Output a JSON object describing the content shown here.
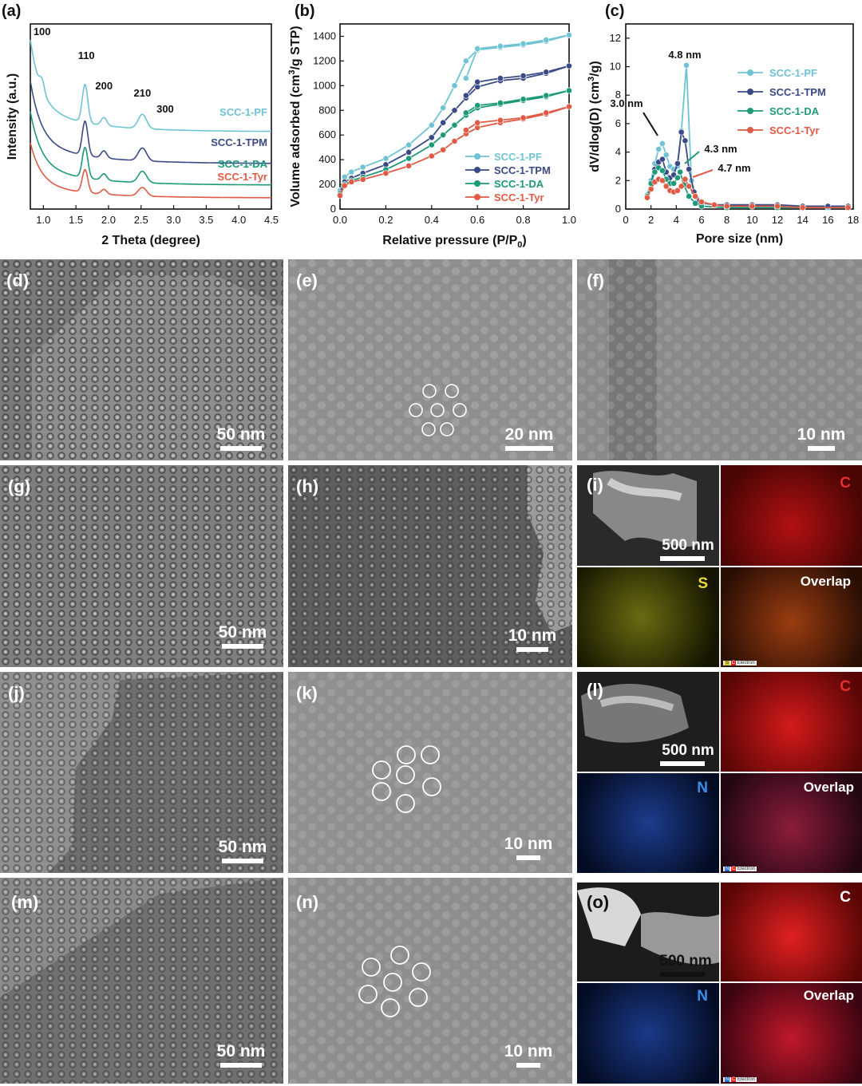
{
  "chart_data": [
    {
      "type": "line",
      "panel": "(a)",
      "xlabel": "2 Theta (degree)",
      "ylabel": "Intensity (a.u.)",
      "xlim": [
        0.8,
        4.5
      ],
      "xticks": [
        "1.0",
        "1.5",
        "2.0",
        "2.5",
        "3.0",
        "3.5",
        "4.0",
        "4.5"
      ],
      "peaks": [
        {
          "label": "100",
          "x": 0.98
        },
        {
          "label": "110",
          "x": 1.66
        },
        {
          "label": "200",
          "x": 1.93
        },
        {
          "label": "210",
          "x": 2.52
        },
        {
          "label": "300",
          "x": 2.87
        }
      ],
      "series": [
        {
          "name": "SCC-1-PF",
          "color": "#6fc3d4"
        },
        {
          "name": "SCC-1-TPM",
          "color": "#3a4a86"
        },
        {
          "name": "SCC-1-DA",
          "color": "#1c9a78"
        },
        {
          "name": "SCC-1-Tyr",
          "color": "#e05a45"
        }
      ]
    },
    {
      "type": "line",
      "panel": "(b)",
      "xlabel": "Relative pressure (P/P",
      "xlabel_sub": "0",
      "xlabel_end": ")",
      "ylabel": "Volume adsorbed (cm",
      "ylabel_sup": "3",
      "ylabel_end": "/g STP)",
      "xlim": [
        0.0,
        1.0
      ],
      "ylim": [
        0,
        1500
      ],
      "xticks": [
        "0.0",
        "0.2",
        "0.4",
        "0.6",
        "0.8",
        "1.0"
      ],
      "yticks": [
        "0",
        "200",
        "400",
        "600",
        "800",
        "1000",
        "1200",
        "1400"
      ],
      "series": [
        {
          "name": "SCC-1-PF",
          "color": "#6fc3d4",
          "adsorption": [
            [
              0.0,
              150
            ],
            [
              0.02,
              260
            ],
            [
              0.05,
              300
            ],
            [
              0.1,
              340
            ],
            [
              0.2,
              410
            ],
            [
              0.3,
              520
            ],
            [
              0.4,
              680
            ],
            [
              0.45,
              820
            ],
            [
              0.5,
              1000
            ],
            [
              0.55,
              1200
            ],
            [
              0.6,
              1290
            ],
            [
              0.7,
              1310
            ],
            [
              0.8,
              1330
            ],
            [
              0.9,
              1360
            ],
            [
              1.0,
              1410
            ]
          ],
          "desorption": [
            [
              1.0,
              1410
            ],
            [
              0.9,
              1370
            ],
            [
              0.8,
              1340
            ],
            [
              0.7,
              1320
            ],
            [
              0.6,
              1300
            ],
            [
              0.55,
              1060
            ]
          ]
        },
        {
          "name": "SCC-1-TPM",
          "color": "#3a4a86",
          "adsorption": [
            [
              0.0,
              130
            ],
            [
              0.02,
              220
            ],
            [
              0.05,
              250
            ],
            [
              0.1,
              290
            ],
            [
              0.2,
              360
            ],
            [
              0.3,
              460
            ],
            [
              0.4,
              580
            ],
            [
              0.45,
              700
            ],
            [
              0.5,
              800
            ],
            [
              0.55,
              900
            ],
            [
              0.6,
              990
            ],
            [
              0.7,
              1040
            ],
            [
              0.8,
              1060
            ],
            [
              0.9,
              1100
            ],
            [
              1.0,
              1160
            ]
          ],
          "desorption": [
            [
              1.0,
              1160
            ],
            [
              0.9,
              1110
            ],
            [
              0.8,
              1080
            ],
            [
              0.7,
              1060
            ],
            [
              0.6,
              1030
            ],
            [
              0.55,
              920
            ]
          ]
        },
        {
          "name": "SCC-1-DA",
          "color": "#1c9a78",
          "adsorption": [
            [
              0.0,
              120
            ],
            [
              0.02,
              200
            ],
            [
              0.05,
              230
            ],
            [
              0.1,
              260
            ],
            [
              0.2,
              320
            ],
            [
              0.3,
              410
            ],
            [
              0.4,
              520
            ],
            [
              0.45,
              600
            ],
            [
              0.5,
              680
            ],
            [
              0.55,
              760
            ],
            [
              0.6,
              820
            ],
            [
              0.7,
              850
            ],
            [
              0.8,
              880
            ],
            [
              0.9,
              910
            ],
            [
              1.0,
              960
            ]
          ],
          "desorption": [
            [
              1.0,
              960
            ],
            [
              0.9,
              920
            ],
            [
              0.8,
              890
            ],
            [
              0.7,
              860
            ],
            [
              0.6,
              840
            ],
            [
              0.55,
              780
            ]
          ]
        },
        {
          "name": "SCC-1-Tyr",
          "color": "#e05a45",
          "adsorption": [
            [
              0.0,
              110
            ],
            [
              0.02,
              190
            ],
            [
              0.05,
              220
            ],
            [
              0.1,
              240
            ],
            [
              0.2,
              290
            ],
            [
              0.3,
              350
            ],
            [
              0.4,
              430
            ],
            [
              0.45,
              480
            ],
            [
              0.5,
              550
            ],
            [
              0.55,
              610
            ],
            [
              0.6,
              660
            ],
            [
              0.7,
              700
            ],
            [
              0.8,
              730
            ],
            [
              0.9,
              770
            ],
            [
              1.0,
              830
            ]
          ],
          "desorption": [
            [
              1.0,
              830
            ],
            [
              0.9,
              780
            ],
            [
              0.8,
              740
            ],
            [
              0.7,
              720
            ],
            [
              0.6,
              700
            ],
            [
              0.55,
              640
            ]
          ]
        }
      ]
    },
    {
      "type": "line",
      "panel": "(c)",
      "xlabel": "Pore size (nm)",
      "ylabel": "dV/dlog(D) (cm",
      "ylabel_sup": "3",
      "ylabel_end": "/g)",
      "xlim": [
        0,
        18
      ],
      "ylim": [
        0,
        13
      ],
      "xticks": [
        "0",
        "2",
        "4",
        "6",
        "8",
        "10",
        "12",
        "14",
        "16",
        "18"
      ],
      "yticks": [
        "0",
        "2",
        "4",
        "6",
        "8",
        "10",
        "12"
      ],
      "annotations": [
        "4.8 nm",
        "3.0 nm",
        "4.3 nm",
        "4.7 nm"
      ],
      "series": [
        {
          "name": "SCC-1-PF",
          "color": "#6fc3d4",
          "points": [
            [
              1.7,
              1.0
            ],
            [
              2.0,
              2.0
            ],
            [
              2.3,
              3.2
            ],
            [
              2.6,
              4.2
            ],
            [
              2.9,
              4.6
            ],
            [
              3.2,
              3.8
            ],
            [
              3.5,
              3.0
            ],
            [
              3.8,
              2.8
            ],
            [
              4.1,
              3.0
            ],
            [
              4.4,
              5.5
            ],
            [
              4.8,
              10.1
            ],
            [
              5.2,
              2.0
            ],
            [
              5.6,
              0.8
            ],
            [
              6.0,
              0.4
            ],
            [
              7,
              0.3
            ],
            [
              8,
              0.2
            ],
            [
              10,
              0.2
            ],
            [
              12,
              0.2
            ],
            [
              14,
              0.1
            ],
            [
              16,
              0.1
            ],
            [
              17.6,
              0.1
            ]
          ]
        },
        {
          "name": "SCC-1-TPM",
          "color": "#3a4a86",
          "points": [
            [
              1.7,
              0.8
            ],
            [
              2.0,
              1.8
            ],
            [
              2.3,
              2.8
            ],
            [
              2.6,
              3.3
            ],
            [
              2.9,
              3.5
            ],
            [
              3.2,
              2.6
            ],
            [
              3.5,
              2.2
            ],
            [
              3.8,
              2.4
            ],
            [
              4.1,
              3.2
            ],
            [
              4.4,
              5.4
            ],
            [
              4.7,
              4.8
            ],
            [
              5.0,
              2.8
            ],
            [
              5.4,
              1.2
            ],
            [
              5.8,
              0.5
            ],
            [
              7,
              0.3
            ],
            [
              8,
              0.3
            ],
            [
              10,
              0.3
            ],
            [
              12,
              0.3
            ],
            [
              14,
              0.2
            ],
            [
              16,
              0.2
            ],
            [
              17.6,
              0.2
            ]
          ]
        },
        {
          "name": "SCC-1-DA",
          "color": "#1c9a78",
          "points": [
            [
              1.7,
              0.9
            ],
            [
              2.0,
              1.8
            ],
            [
              2.3,
              2.6
            ],
            [
              2.6,
              2.9
            ],
            [
              2.9,
              2.7
            ],
            [
              3.2,
              2.1
            ],
            [
              3.5,
              1.8
            ],
            [
              3.8,
              1.8
            ],
            [
              4.1,
              2.2
            ],
            [
              4.3,
              2.6
            ],
            [
              4.6,
              1.7
            ],
            [
              5.0,
              0.9
            ],
            [
              5.5,
              0.4
            ],
            [
              6.0,
              0.2
            ],
            [
              8,
              0.1
            ],
            [
              12,
              0.1
            ],
            [
              17.6,
              0.1
            ]
          ]
        },
        {
          "name": "SCC-1-Tyr",
          "color": "#e05a45",
          "points": [
            [
              1.7,
              0.8
            ],
            [
              2.0,
              1.4
            ],
            [
              2.3,
              1.9
            ],
            [
              2.6,
              2.1
            ],
            [
              2.9,
              2.0
            ],
            [
              3.2,
              1.6
            ],
            [
              3.5,
              1.3
            ],
            [
              3.8,
              1.2
            ],
            [
              4.1,
              1.3
            ],
            [
              4.4,
              1.6
            ],
            [
              4.7,
              2.1
            ],
            [
              5.0,
              1.6
            ],
            [
              5.5,
              0.9
            ],
            [
              6.0,
              0.5
            ],
            [
              7,
              0.3
            ],
            [
              8,
              0.2
            ],
            [
              10,
              0.2
            ],
            [
              12,
              0.2
            ],
            [
              14,
              0.1
            ],
            [
              17.6,
              0.1
            ]
          ]
        }
      ]
    }
  ],
  "panels": {
    "d": {
      "label": "(d)",
      "scale": "50 nm"
    },
    "e": {
      "label": "(e)",
      "scale": "20 nm"
    },
    "f": {
      "label": "(f)",
      "scale": "10 nm"
    },
    "g": {
      "label": "(g)",
      "scale": "50 nm"
    },
    "h": {
      "label": "(h)",
      "scale": "10 nm"
    },
    "i": {
      "label": "(i)",
      "scale": "500 nm",
      "c": "C",
      "s": "S",
      "overlap": "Overlap",
      "legend": "Electron",
      "legend_s": "S",
      "legend_c": "C"
    },
    "j": {
      "label": "(j)",
      "scale": "50 nm"
    },
    "k": {
      "label": "(k)",
      "scale": "10 nm"
    },
    "l": {
      "label": "(l)",
      "scale": "500 nm",
      "c": "C",
      "n": "N",
      "overlap": "Overlap",
      "legend": "Electron",
      "legend_n": "N",
      "legend_c": "C"
    },
    "m": {
      "label": "(m)",
      "scale": "50 nm"
    },
    "n": {
      "label": "(n)",
      "scale": "10 nm"
    },
    "o": {
      "label": "(o)",
      "scale": "500 nm",
      "c": "C",
      "n": "N",
      "overlap": "Overlap",
      "legend": "Electron",
      "legend_n": "N",
      "legend_c": "C"
    }
  }
}
